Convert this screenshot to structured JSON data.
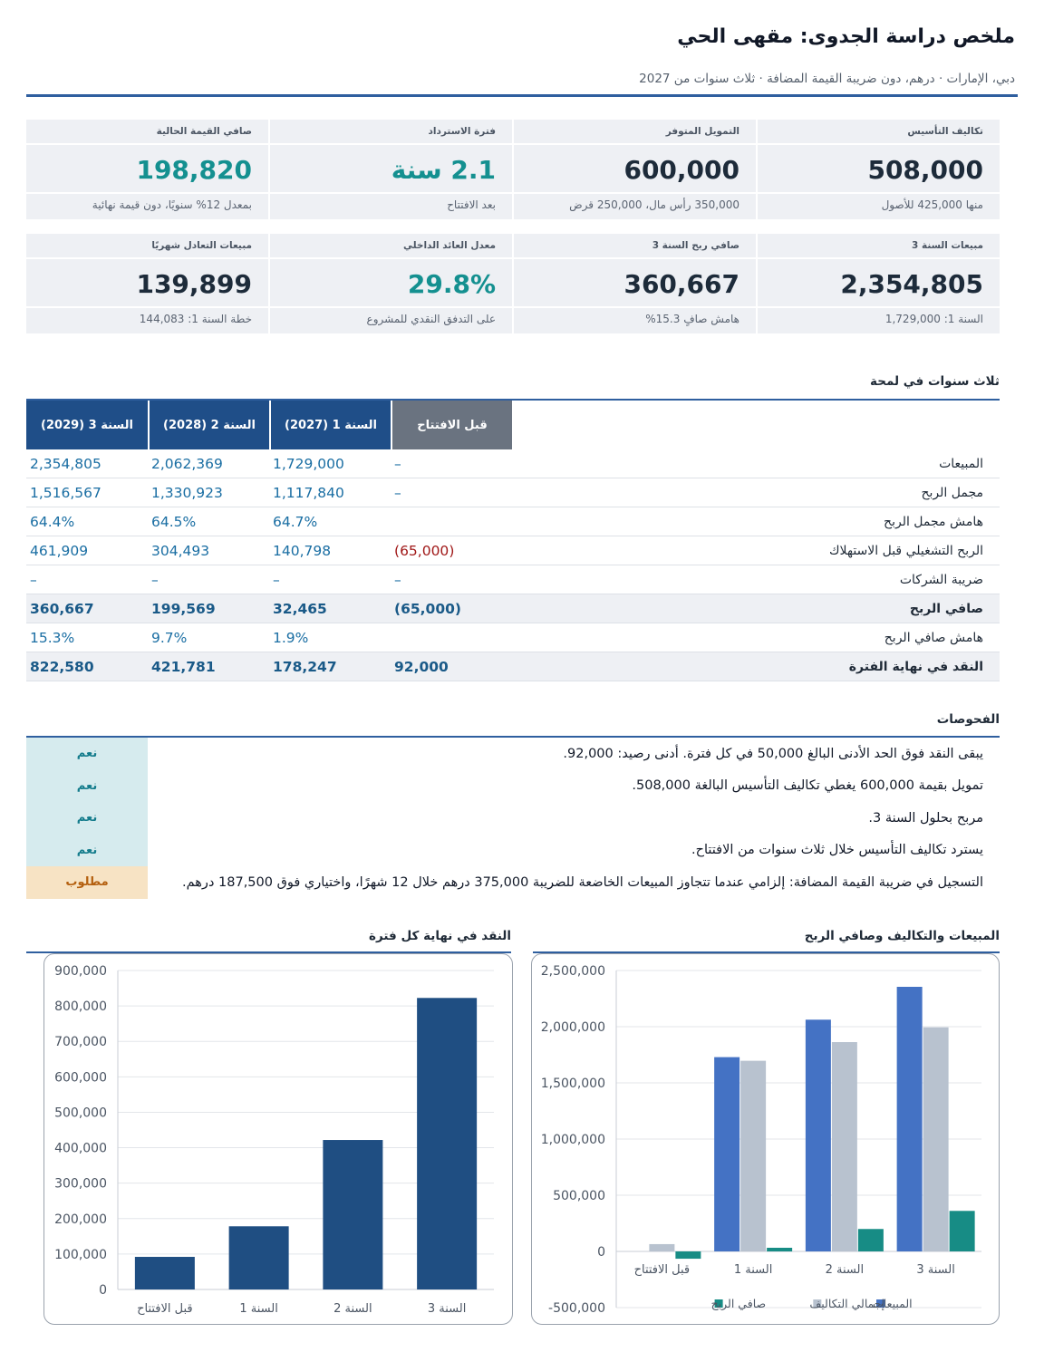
{
  "header": {
    "title": "ملخص دراسة الجدوى: مقهى الحي",
    "subtitle": "دبي، الإمارات  ·  درهم، دون ضريبة القيمة المضافة  ·  ثلاث سنوات من 2027"
  },
  "kpis": [
    {
      "label": "تكاليف التأسيس",
      "value": "508,000",
      "note": "منها 425,000 للأصول",
      "accent": false
    },
    {
      "label": "التمويل المتوفر",
      "value": "600,000",
      "note": "350,000 رأس مال، 250,000 قرض",
      "accent": false
    },
    {
      "label": "فترة الاسترداد",
      "value": "2.1 سنة",
      "note": "بعد الافتتاح",
      "accent": true
    },
    {
      "label": "صافي القيمة الحالية",
      "value": "198,820",
      "note": "بمعدل 12% سنويًا، دون قيمة نهائية",
      "accent": true
    },
    {
      "label": "مبيعات السنة 3",
      "value": "2,354,805",
      "note": "السنة 1: 1,729,000",
      "accent": false
    },
    {
      "label": "صافي ربح السنة 3",
      "value": "360,667",
      "note": "هامش صافٍ 15.3%",
      "accent": false
    },
    {
      "label": "معدل العائد الداخلي",
      "value": "29.8%",
      "note": "على التدفق النقدي للمشروع",
      "accent": true
    },
    {
      "label": "مبيعات التعادل شهريًا",
      "value": "139,899",
      "note": "خطة السنة 1: 144,083",
      "accent": false
    }
  ],
  "glance": {
    "title": "ثلاث سنوات في لمحة",
    "columns": [
      "قبل الافتتاح",
      "السنة 1 (2027)",
      "السنة 2 (2028)",
      "السنة 3 (2029)"
    ],
    "rows": [
      {
        "label": "المبيعات",
        "values": [
          "–",
          "1,729,000",
          "2,062,369",
          "2,354,805"
        ],
        "bold": false
      },
      {
        "label": "مجمل الربح",
        "values": [
          "–",
          "1,117,840",
          "1,330,923",
          "1,516,567"
        ],
        "bold": false
      },
      {
        "label": "هامش مجمل الربح",
        "values": [
          "",
          "64.7%",
          "64.5%",
          "64.4%"
        ],
        "bold": false
      },
      {
        "label": "الربح التشغيلي قبل الاستهلاك",
        "values": [
          "(65,000)",
          "140,798",
          "304,493",
          "461,909"
        ],
        "bold": false
      },
      {
        "label": "ضريبة الشركات",
        "values": [
          "–",
          "–",
          "–",
          "–"
        ],
        "bold": false
      },
      {
        "label": "صافي الربح",
        "values": [
          "(65,000)",
          "32,465",
          "199,569",
          "360,667"
        ],
        "bold": true
      },
      {
        "label": "هامش صافي الربح",
        "values": [
          "",
          "1.9%",
          "9.7%",
          "15.3%"
        ],
        "bold": false
      },
      {
        "label": "النقد في نهاية الفترة",
        "values": [
          "92,000",
          "178,247",
          "421,781",
          "822,580"
        ],
        "bold": true
      }
    ]
  },
  "checks": {
    "title": "الفحوصات",
    "items": [
      {
        "status": "نعم",
        "text": "يبقى النقد فوق الحد الأدنى البالغ 50,000 في كل فترة. أدنى رصيد: 92,000.",
        "type": "ok"
      },
      {
        "status": "نعم",
        "text": "تمويل بقيمة 600,000 يغطي تكاليف التأسيس البالغة 508,000.",
        "type": "ok"
      },
      {
        "status": "نعم",
        "text": "مربح بحلول السنة 3.",
        "type": "ok"
      },
      {
        "status": "نعم",
        "text": "يسترد تكاليف التأسيس خلال ثلاث سنوات من الافتتاح.",
        "type": "ok"
      },
      {
        "status": "مطلوب",
        "text": "التسجيل في ضريبة القيمة المضافة: إلزامي عندما تتجاوز المبيعات الخاضعة للضريبة 375,000 درهم خلال 12 شهرًا، واختياري فوق 187,500 درهم.",
        "type": "required"
      }
    ]
  },
  "chart_data": [
    {
      "type": "bar",
      "title": "المبيعات والتكاليف وصافي الربح",
      "categories": [
        "قبل الافتتاح",
        "السنة 1",
        "السنة 2",
        "السنة 3"
      ],
      "series": [
        {
          "name": "المبيعات",
          "color": "#4472c4",
          "values": [
            0,
            1729000,
            2062369,
            2354805
          ]
        },
        {
          "name": "إجمالي التكاليف",
          "color": "#b8c2cf",
          "values": [
            65000,
            1696535,
            1862800,
            1994138
          ]
        },
        {
          "name": "صافي الربح",
          "color": "#178c85",
          "values": [
            -65000,
            32465,
            199569,
            360667
          ]
        }
      ],
      "ylim": [
        -500000,
        2500000
      ],
      "yticks": [
        -500000,
        0,
        500000,
        1000000,
        1500000,
        2000000,
        2500000
      ],
      "ytick_labels": [
        "-500,000",
        "0",
        "500,000",
        "1,000,000",
        "1,500,000",
        "2,000,000",
        "2,500,000"
      ],
      "legend": "bottom",
      "grid": true
    },
    {
      "type": "bar",
      "title": "النقد في نهاية كل فترة",
      "categories": [
        "قبل الافتتاح",
        "السنة 1",
        "السنة 2",
        "السنة 3"
      ],
      "series": [
        {
          "name": "",
          "color": "#1f4e82",
          "values": [
            92000,
            178247,
            421781,
            822580
          ]
        }
      ],
      "ylim": [
        0,
        900000
      ],
      "yticks": [
        0,
        100000,
        200000,
        300000,
        400000,
        500000,
        600000,
        700000,
        800000,
        900000
      ],
      "ytick_labels": [
        "0",
        "100,000",
        "200,000",
        "300,000",
        "400,000",
        "500,000",
        "600,000",
        "700,000",
        "800,000",
        "900,000"
      ],
      "legend": "none",
      "grid": true
    }
  ]
}
